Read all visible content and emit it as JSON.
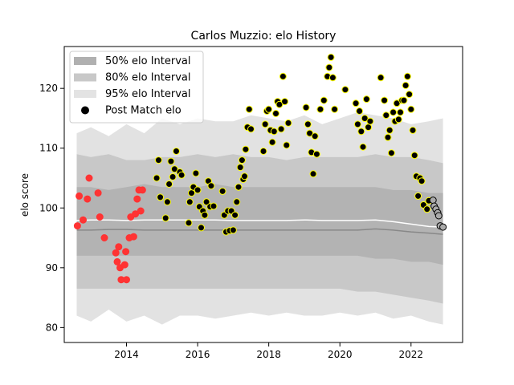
{
  "chart_data": {
    "type": "scatter",
    "title": "Carlos Muzzio: elo History",
    "xlabel": "",
    "ylabel": "elo score",
    "xlim": [
      2012.25,
      2023.45
    ],
    "ylim": [
      77.5,
      127.0
    ],
    "x_ticks": [
      2014,
      2016,
      2018,
      2020,
      2022
    ],
    "y_ticks": [
      80,
      90,
      100,
      110,
      120
    ],
    "grid": false,
    "legend_position": "top-left",
    "legend": [
      {
        "label": "50% elo Interval",
        "kind": "band",
        "color": "#b0b0b0"
      },
      {
        "label": "80% elo Interval",
        "kind": "band",
        "color": "#c8c8c8"
      },
      {
        "label": "95% elo Interval",
        "kind": "band",
        "color": "#e3e3e3"
      },
      {
        "label": "Post Match elo",
        "kind": "marker",
        "color": "#000000"
      }
    ],
    "colors": {
      "band_50": "#b3b3b3",
      "band_80": "#c8c8c8",
      "band_95": "#e2e2e2",
      "mean_line": "#ffffff",
      "median_line": "#888888",
      "early_points": "#ff3333",
      "mid_points": "#000000",
      "mid_edge": "#ffff00",
      "late_points": "#aaaaaa",
      "late_edge": "#000000"
    },
    "band_x": [
      2012.6,
      2013.0,
      2013.5,
      2014.0,
      2014.5,
      2015.0,
      2015.5,
      2016.0,
      2016.5,
      2017.0,
      2017.5,
      2018.0,
      2018.5,
      2019.0,
      2019.5,
      2020.0,
      2020.5,
      2021.0,
      2021.5,
      2022.0,
      2022.5,
      2022.9
    ],
    "band_95": {
      "upper": [
        112.5,
        113.5,
        112.0,
        114.0,
        112.5,
        115.0,
        114.0,
        115.0,
        114.5,
        114.5,
        115.5,
        115.0,
        114.5,
        115.5,
        114.0,
        115.0,
        116.0,
        115.5,
        115.0,
        114.0,
        114.5,
        115.0
      ],
      "lower": [
        82.0,
        81.0,
        83.0,
        81.0,
        82.0,
        80.5,
        82.0,
        82.0,
        81.5,
        82.0,
        82.5,
        82.0,
        82.5,
        82.0,
        82.0,
        82.5,
        82.0,
        82.5,
        81.5,
        82.0,
        81.0,
        80.5
      ]
    },
    "band_80": {
      "upper": [
        109.0,
        108.5,
        109.0,
        108.0,
        108.0,
        108.5,
        108.5,
        109.0,
        108.5,
        109.0,
        108.5,
        108.5,
        108.0,
        108.5,
        108.5,
        108.5,
        108.5,
        109.0,
        108.5,
        108.5,
        108.0,
        107.5
      ],
      "lower": [
        86.5,
        86.5,
        86.5,
        86.5,
        86.5,
        86.5,
        86.5,
        86.5,
        86.5,
        86.5,
        86.5,
        86.5,
        86.5,
        86.5,
        86.5,
        86.5,
        86.0,
        86.0,
        85.5,
        85.0,
        84.5,
        84.0
      ]
    },
    "band_50": {
      "upper": [
        103.5,
        103.5,
        103.0,
        103.5,
        104.0,
        103.5,
        103.5,
        103.5,
        104.0,
        103.5,
        103.5,
        103.5,
        103.5,
        103.5,
        103.5,
        103.5,
        103.5,
        103.5,
        103.0,
        103.0,
        102.5,
        102.5
      ],
      "lower": [
        92.0,
        92.0,
        92.0,
        92.0,
        92.0,
        92.0,
        92.0,
        92.0,
        92.0,
        92.0,
        92.0,
        92.0,
        92.0,
        92.0,
        92.0,
        92.0,
        92.0,
        91.5,
        91.5,
        91.0,
        91.0,
        90.5
      ]
    },
    "mean_line": [
      97.9,
      98.0,
      98.0,
      97.9,
      98.0,
      98.0,
      98.0,
      98.0,
      98.0,
      97.9,
      97.9,
      97.9,
      97.9,
      98.0,
      97.9,
      97.9,
      97.9,
      98.0,
      97.7,
      97.3,
      96.9,
      96.8
    ],
    "median_line": [
      96.3,
      96.3,
      96.4,
      96.4,
      96.3,
      96.3,
      96.3,
      96.3,
      96.3,
      96.3,
      96.3,
      96.3,
      96.3,
      96.3,
      96.3,
      96.3,
      96.3,
      96.5,
      96.3,
      96.0,
      95.8,
      95.6
    ],
    "series": [
      {
        "group": "early",
        "points": [
          [
            2012.62,
            97.0
          ],
          [
            2012.67,
            102.0
          ],
          [
            2012.78,
            98.0
          ],
          [
            2012.9,
            101.5
          ],
          [
            2012.95,
            105.0
          ],
          [
            2013.2,
            102.5
          ],
          [
            2013.25,
            98.5
          ],
          [
            2013.38,
            95.0
          ],
          [
            2013.7,
            92.5
          ],
          [
            2013.74,
            91.0
          ],
          [
            2013.78,
            93.5
          ],
          [
            2013.82,
            90.0
          ],
          [
            2013.85,
            88.0
          ],
          [
            2013.95,
            90.5
          ],
          [
            2013.98,
            92.7
          ],
          [
            2014.0,
            88.0
          ],
          [
            2014.08,
            95.0
          ],
          [
            2014.12,
            98.5
          ],
          [
            2014.2,
            95.2
          ],
          [
            2014.25,
            99.0
          ],
          [
            2014.3,
            101.5
          ],
          [
            2014.35,
            103.0
          ],
          [
            2014.4,
            99.5
          ],
          [
            2014.45,
            103.0
          ]
        ]
      },
      {
        "group": "mid",
        "points": [
          [
            2014.85,
            105.0
          ],
          [
            2014.9,
            108.0
          ],
          [
            2014.95,
            101.8
          ],
          [
            2015.1,
            98.3
          ],
          [
            2015.15,
            101.0
          ],
          [
            2015.2,
            104.0
          ],
          [
            2015.25,
            107.8
          ],
          [
            2015.3,
            105.2
          ],
          [
            2015.35,
            106.5
          ],
          [
            2015.4,
            109.5
          ],
          [
            2015.5,
            106.0
          ],
          [
            2015.55,
            105.5
          ],
          [
            2015.75,
            97.5
          ],
          [
            2015.78,
            101.0
          ],
          [
            2015.83,
            102.5
          ],
          [
            2015.88,
            103.5
          ],
          [
            2015.95,
            105.8
          ],
          [
            2016.0,
            103.0
          ],
          [
            2016.05,
            100.2
          ],
          [
            2016.1,
            96.7
          ],
          [
            2016.15,
            99.5
          ],
          [
            2016.2,
            98.8
          ],
          [
            2016.25,
            101.0
          ],
          [
            2016.3,
            104.5
          ],
          [
            2016.35,
            100.2
          ],
          [
            2016.38,
            103.7
          ],
          [
            2016.45,
            100.3
          ],
          [
            2016.7,
            102.8
          ],
          [
            2016.75,
            98.8
          ],
          [
            2016.8,
            96.0
          ],
          [
            2016.85,
            99.5
          ],
          [
            2016.9,
            96.2
          ],
          [
            2016.95,
            99.5
          ],
          [
            2017.0,
            96.3
          ],
          [
            2017.05,
            98.8
          ],
          [
            2017.1,
            101.0
          ],
          [
            2017.15,
            103.5
          ],
          [
            2017.2,
            106.8
          ],
          [
            2017.25,
            108.0
          ],
          [
            2017.28,
            104.8
          ],
          [
            2017.32,
            105.3
          ],
          [
            2017.35,
            109.8
          ],
          [
            2017.4,
            113.5
          ],
          [
            2017.45,
            116.5
          ],
          [
            2017.5,
            113.2
          ],
          [
            2017.85,
            109.5
          ],
          [
            2017.9,
            114.0
          ],
          [
            2017.95,
            116.2
          ],
          [
            2018.0,
            116.5
          ],
          [
            2018.05,
            113.0
          ],
          [
            2018.1,
            111.0
          ],
          [
            2018.15,
            112.8
          ],
          [
            2018.2,
            115.8
          ],
          [
            2018.25,
            117.8
          ],
          [
            2018.3,
            117.3
          ],
          [
            2018.35,
            113.2
          ],
          [
            2018.4,
            122.0
          ],
          [
            2018.45,
            117.8
          ],
          [
            2018.5,
            110.5
          ],
          [
            2018.55,
            114.2
          ],
          [
            2019.05,
            116.8
          ],
          [
            2019.1,
            114.0
          ],
          [
            2019.15,
            112.5
          ],
          [
            2019.2,
            109.3
          ],
          [
            2019.25,
            105.7
          ],
          [
            2019.3,
            112.0
          ],
          [
            2019.35,
            109.0
          ],
          [
            2019.45,
            116.5
          ],
          [
            2019.55,
            118.0
          ],
          [
            2019.65,
            122.0
          ],
          [
            2019.7,
            123.5
          ],
          [
            2019.75,
            125.2
          ],
          [
            2019.8,
            121.8
          ],
          [
            2019.85,
            116.5
          ],
          [
            2020.15,
            119.8
          ],
          [
            2020.45,
            117.5
          ],
          [
            2020.5,
            114.0
          ],
          [
            2020.55,
            116.2
          ],
          [
            2020.6,
            112.8
          ],
          [
            2020.65,
            110.2
          ],
          [
            2020.7,
            115.0
          ],
          [
            2020.75,
            118.2
          ],
          [
            2020.8,
            113.5
          ],
          [
            2020.85,
            114.5
          ],
          [
            2021.15,
            121.8
          ],
          [
            2021.25,
            118.0
          ],
          [
            2021.3,
            115.5
          ],
          [
            2021.35,
            111.8
          ],
          [
            2021.4,
            113.0
          ],
          [
            2021.45,
            109.2
          ],
          [
            2021.5,
            116.0
          ],
          [
            2021.55,
            114.5
          ],
          [
            2021.6,
            117.5
          ],
          [
            2021.65,
            114.8
          ],
          [
            2021.7,
            116.0
          ],
          [
            2021.75,
            118.0
          ],
          [
            2021.8,
            118.0
          ],
          [
            2021.85,
            120.5
          ],
          [
            2021.9,
            122.0
          ],
          [
            2021.95,
            119.0
          ],
          [
            2022.0,
            116.5
          ],
          [
            2022.05,
            113.0
          ],
          [
            2022.1,
            108.8
          ],
          [
            2022.15,
            105.3
          ],
          [
            2022.2,
            102.0
          ],
          [
            2022.25,
            105.0
          ],
          [
            2022.3,
            104.5
          ],
          [
            2022.35,
            100.5
          ],
          [
            2022.45,
            99.8
          ],
          [
            2022.5,
            101.2
          ]
        ]
      },
      {
        "group": "late",
        "points": [
          [
            2022.62,
            101.3
          ],
          [
            2022.65,
            100.3
          ],
          [
            2022.7,
            99.8
          ],
          [
            2022.75,
            99.2
          ],
          [
            2022.78,
            98.7
          ],
          [
            2022.82,
            97.0
          ],
          [
            2022.9,
            96.8
          ]
        ]
      }
    ]
  }
}
